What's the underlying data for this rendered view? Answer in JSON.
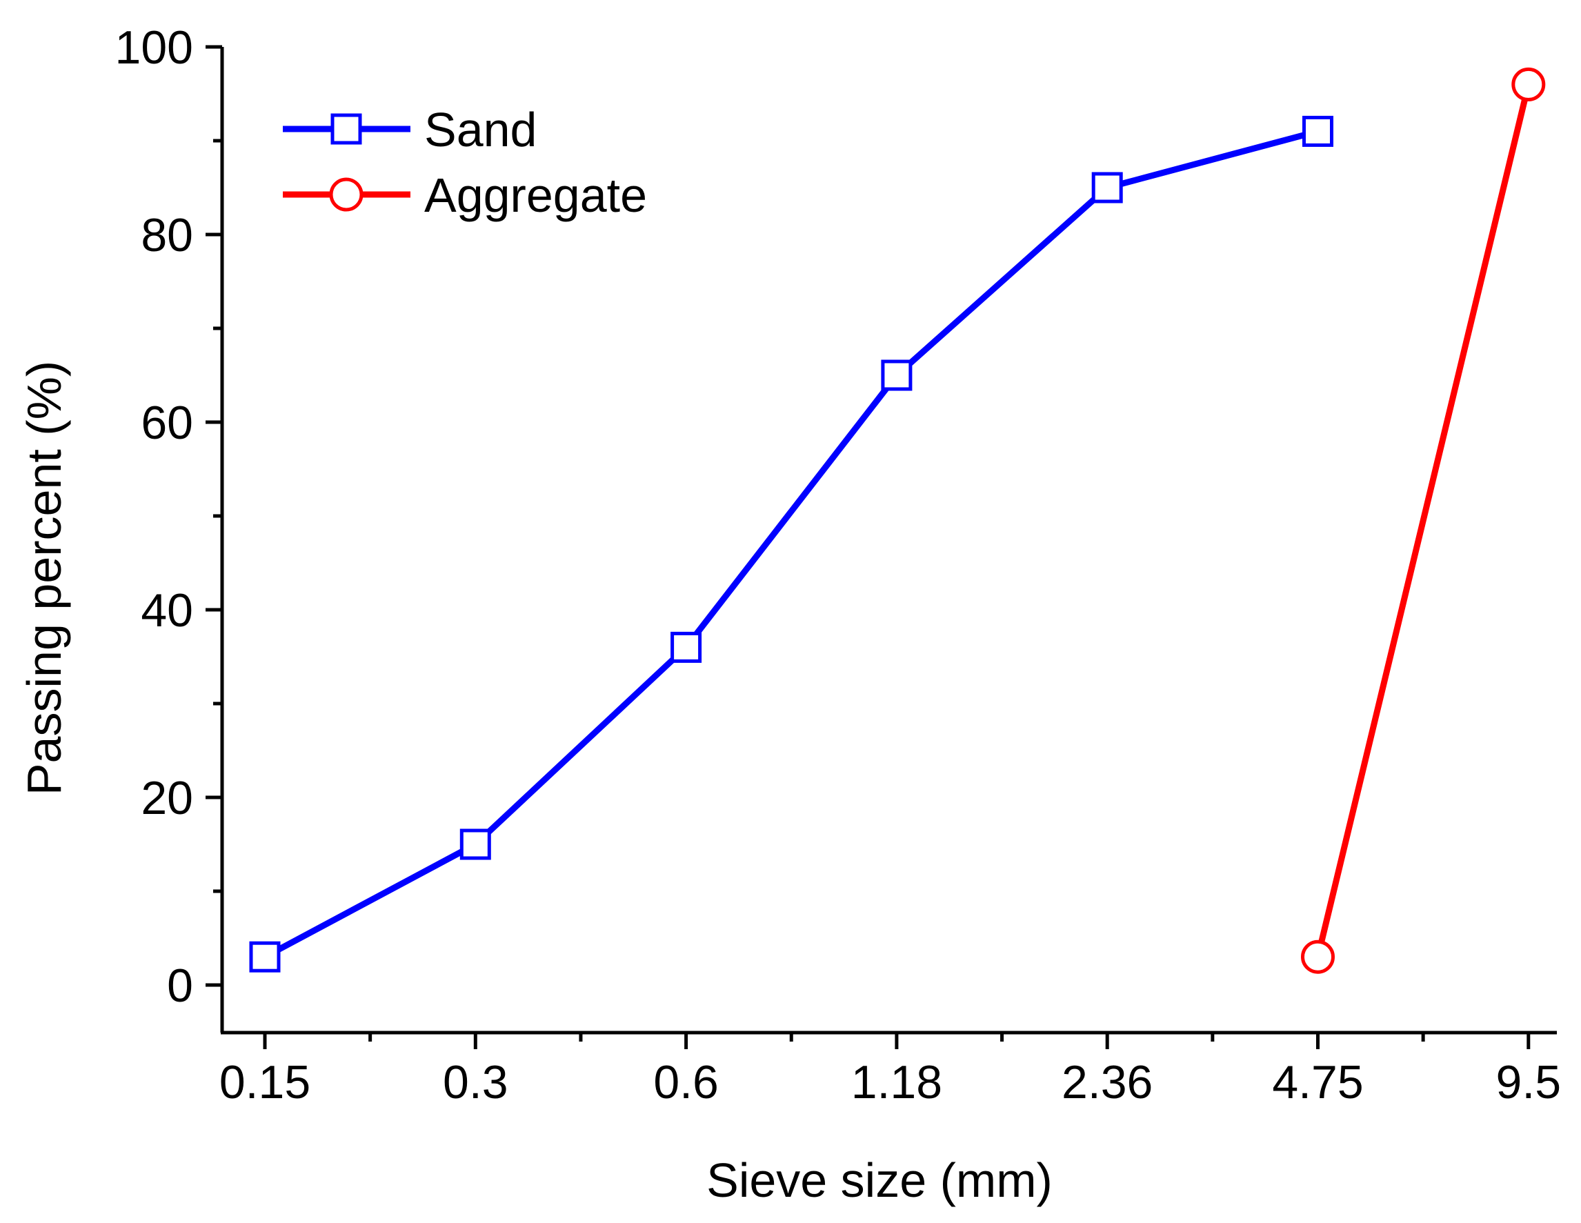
{
  "chart_data": {
    "type": "line",
    "xlabel": "Sieve size (mm)",
    "ylabel": "Passing percent (%)",
    "categories": [
      "0.15",
      "0.3",
      "0.6",
      "1.18",
      "2.36",
      "4.75",
      "9.5"
    ],
    "ylim": [
      -5,
      100
    ],
    "yticks": [
      0,
      20,
      40,
      60,
      80,
      100
    ],
    "yticks_minor": [
      10,
      30,
      50,
      70,
      90
    ],
    "grid": false,
    "legend_position": "top-left",
    "series": [
      {
        "name": "Sand",
        "color": "#0000ff",
        "marker": "square",
        "x": [
          "0.15",
          "0.3",
          "0.6",
          "1.18",
          "2.36",
          "4.75"
        ],
        "values": [
          3,
          15,
          36,
          65,
          85,
          91
        ]
      },
      {
        "name": "Aggregate",
        "color": "#ff0000",
        "marker": "circle",
        "x": [
          "4.75",
          "9.5"
        ],
        "values": [
          3,
          96
        ]
      }
    ]
  }
}
